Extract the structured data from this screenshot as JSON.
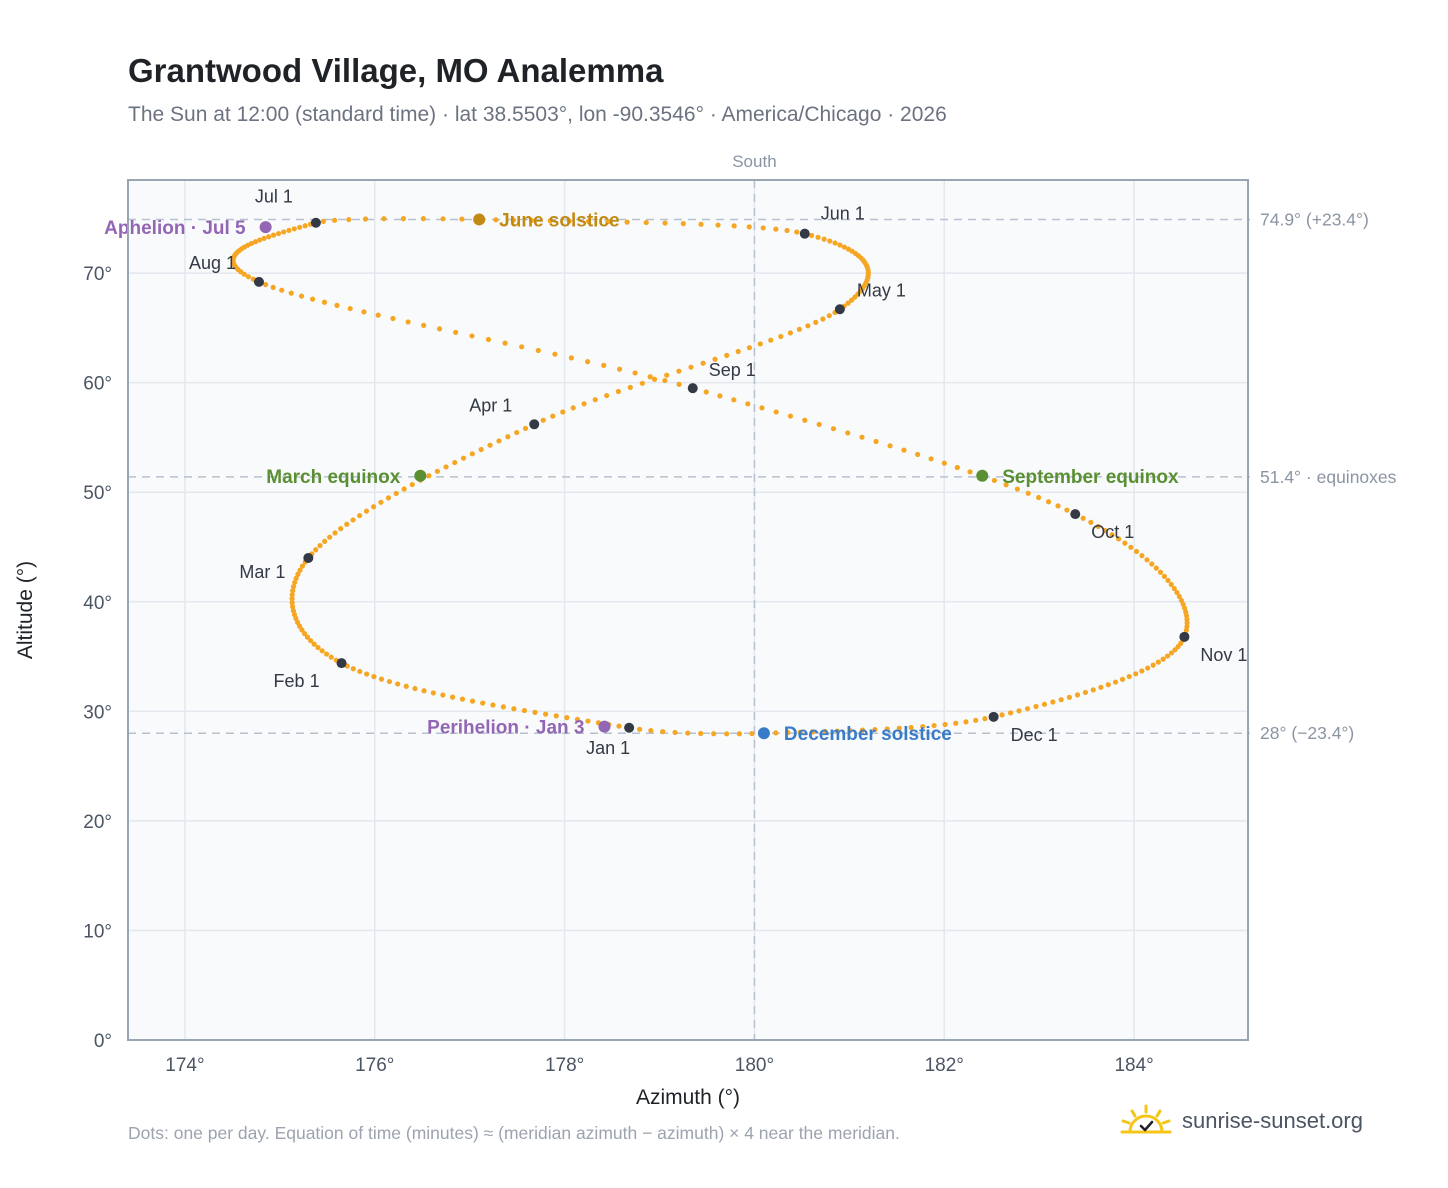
{
  "header": {
    "title": "Grantwood Village, MO Analemma",
    "subtitle": "The Sun at 12:00 (standard time) · lat 38.5503°, lon -90.3546° · America/Chicago · 2026"
  },
  "footer": {
    "note": "Dots: one per day. Equation of time (minutes) ≈ (meridian azimuth − azimuth) × 4 near the meridian.",
    "brand": "sunrise-sunset.org"
  },
  "colors": {
    "path": "#f5a623",
    "month_marker": "#333a45",
    "solstice_june": "#c28a12",
    "solstice_december": "#3a7bc8",
    "equinox": "#5a8f32",
    "apsis": "#9366b4",
    "ref_line": "#b6c2cf"
  },
  "chart_data": {
    "type": "scatter",
    "xlabel": "Azimuth (°)",
    "ylabel": "Altitude (°)",
    "xlim": [
      173.4,
      185.2
    ],
    "ylim": [
      0,
      78.5
    ],
    "x_ticks": [
      174,
      176,
      178,
      180,
      182,
      184
    ],
    "x_tick_labels": [
      "174°",
      "176°",
      "178°",
      "180°",
      "182°",
      "184°"
    ],
    "y_ticks": [
      0,
      10,
      20,
      30,
      40,
      50,
      60,
      70
    ],
    "y_tick_labels": [
      "0°",
      "10°",
      "20°",
      "30°",
      "40°",
      "50°",
      "60°",
      "70°"
    ],
    "grid": true,
    "meridian": {
      "x": 180,
      "label": "South"
    },
    "reference_lines": [
      {
        "y": 74.9,
        "label": "74.9° (+23.4°)"
      },
      {
        "y": 51.4,
        "label": "51.4° · equinoxes"
      },
      {
        "y": 28.0,
        "label": "28° (−23.4°)"
      }
    ],
    "month_markers": [
      {
        "label": "Jan 1",
        "azimuth": 178.68,
        "altitude": 28.5
      },
      {
        "label": "Feb 1",
        "azimuth": 175.65,
        "altitude": 34.4
      },
      {
        "label": "Mar 1",
        "azimuth": 175.3,
        "altitude": 44.0
      },
      {
        "label": "Apr 1",
        "azimuth": 177.68,
        "altitude": 56.2
      },
      {
        "label": "May 1",
        "azimuth": 180.9,
        "altitude": 66.7
      },
      {
        "label": "Jun 1",
        "azimuth": 180.53,
        "altitude": 73.6
      },
      {
        "label": "Jul 1",
        "azimuth": 175.38,
        "altitude": 74.6
      },
      {
        "label": "Aug 1",
        "azimuth": 174.78,
        "altitude": 69.2
      },
      {
        "label": "Sep 1",
        "azimuth": 179.35,
        "altitude": 59.5
      },
      {
        "label": "Oct 1",
        "azimuth": 183.38,
        "altitude": 48.0
      },
      {
        "label": "Nov 1",
        "azimuth": 184.53,
        "altitude": 36.8
      },
      {
        "label": "Dec 1",
        "azimuth": 182.52,
        "altitude": 29.5
      }
    ],
    "events": [
      {
        "label": "June solstice",
        "azimuth": 177.1,
        "altitude": 74.9
      },
      {
        "label": "December solstice",
        "azimuth": 180.1,
        "altitude": 28.0
      },
      {
        "label": "March equinox",
        "azimuth": 176.48,
        "altitude": 51.5
      },
      {
        "label": "September equinox",
        "azimuth": 182.4,
        "altitude": 51.5
      },
      {
        "label": "Perihelion · Jan 3",
        "azimuth": 178.42,
        "altitude": 28.6
      },
      {
        "label": "Aphelion · Jul 5",
        "azimuth": 174.85,
        "altitude": 74.2
      }
    ]
  }
}
